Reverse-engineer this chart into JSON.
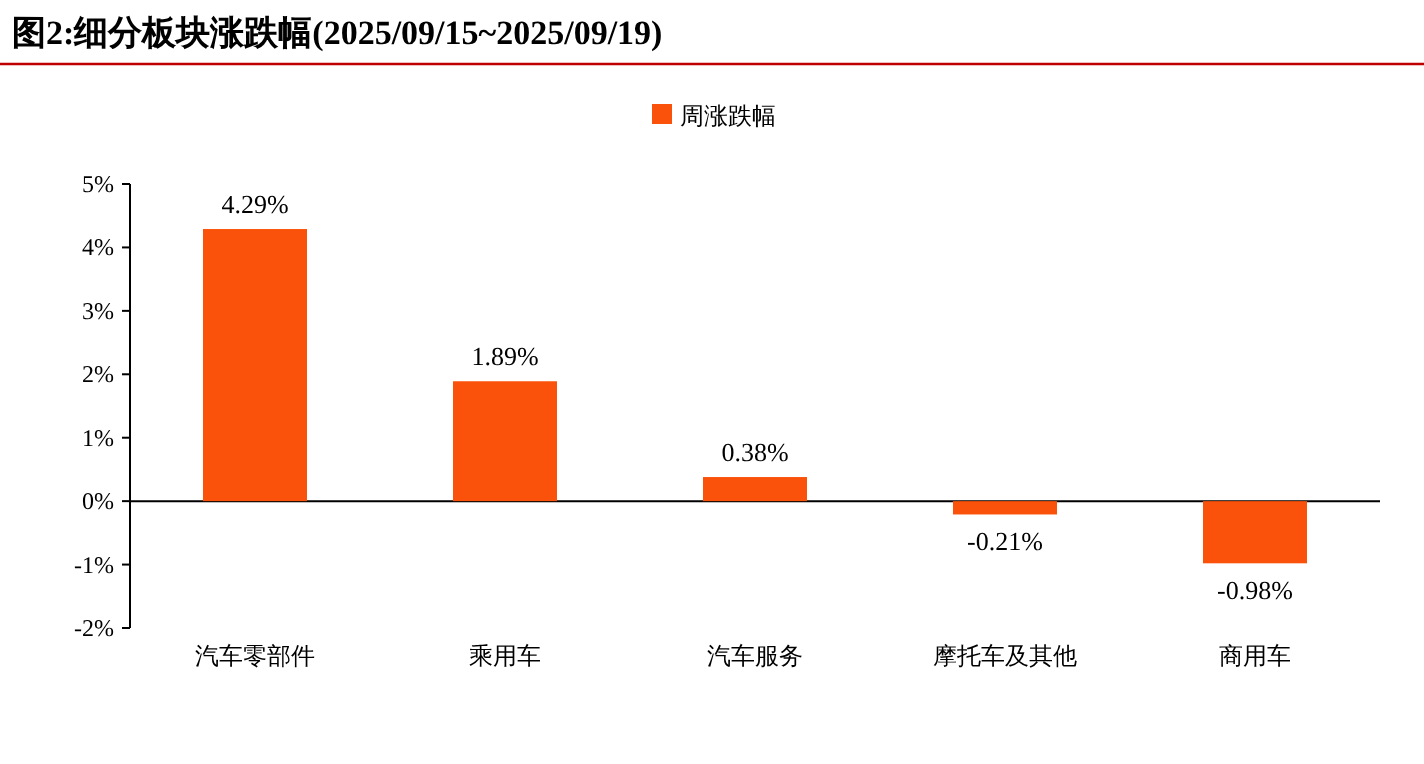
{
  "chart_data": {
    "type": "bar",
    "title": "图2:细分板块涨跌幅(2025/09/15~2025/09/19)",
    "categories": [
      "汽车零部件",
      "乘用车",
      "汽车服务",
      "摩托车及其他",
      "商用车"
    ],
    "series": [
      {
        "name": "周涨跌幅",
        "color": "#fa520a",
        "values": [
          4.29,
          1.89,
          0.38,
          -0.21,
          -0.98
        ],
        "value_labels": [
          "4.29%",
          "1.89%",
          "0.38%",
          "-0.21%",
          "-0.98%"
        ]
      }
    ],
    "ylim": [
      -2,
      5
    ],
    "yticks": [
      {
        "value": -2,
        "label": "-2%"
      },
      {
        "value": -1,
        "label": "-1%"
      },
      {
        "value": 0,
        "label": "0%"
      },
      {
        "value": 1,
        "label": "1%"
      },
      {
        "value": 2,
        "label": "2%"
      },
      {
        "value": 3,
        "label": "3%"
      },
      {
        "value": 4,
        "label": "4%"
      },
      {
        "value": 5,
        "label": "5%"
      }
    ],
    "legend": "top"
  }
}
